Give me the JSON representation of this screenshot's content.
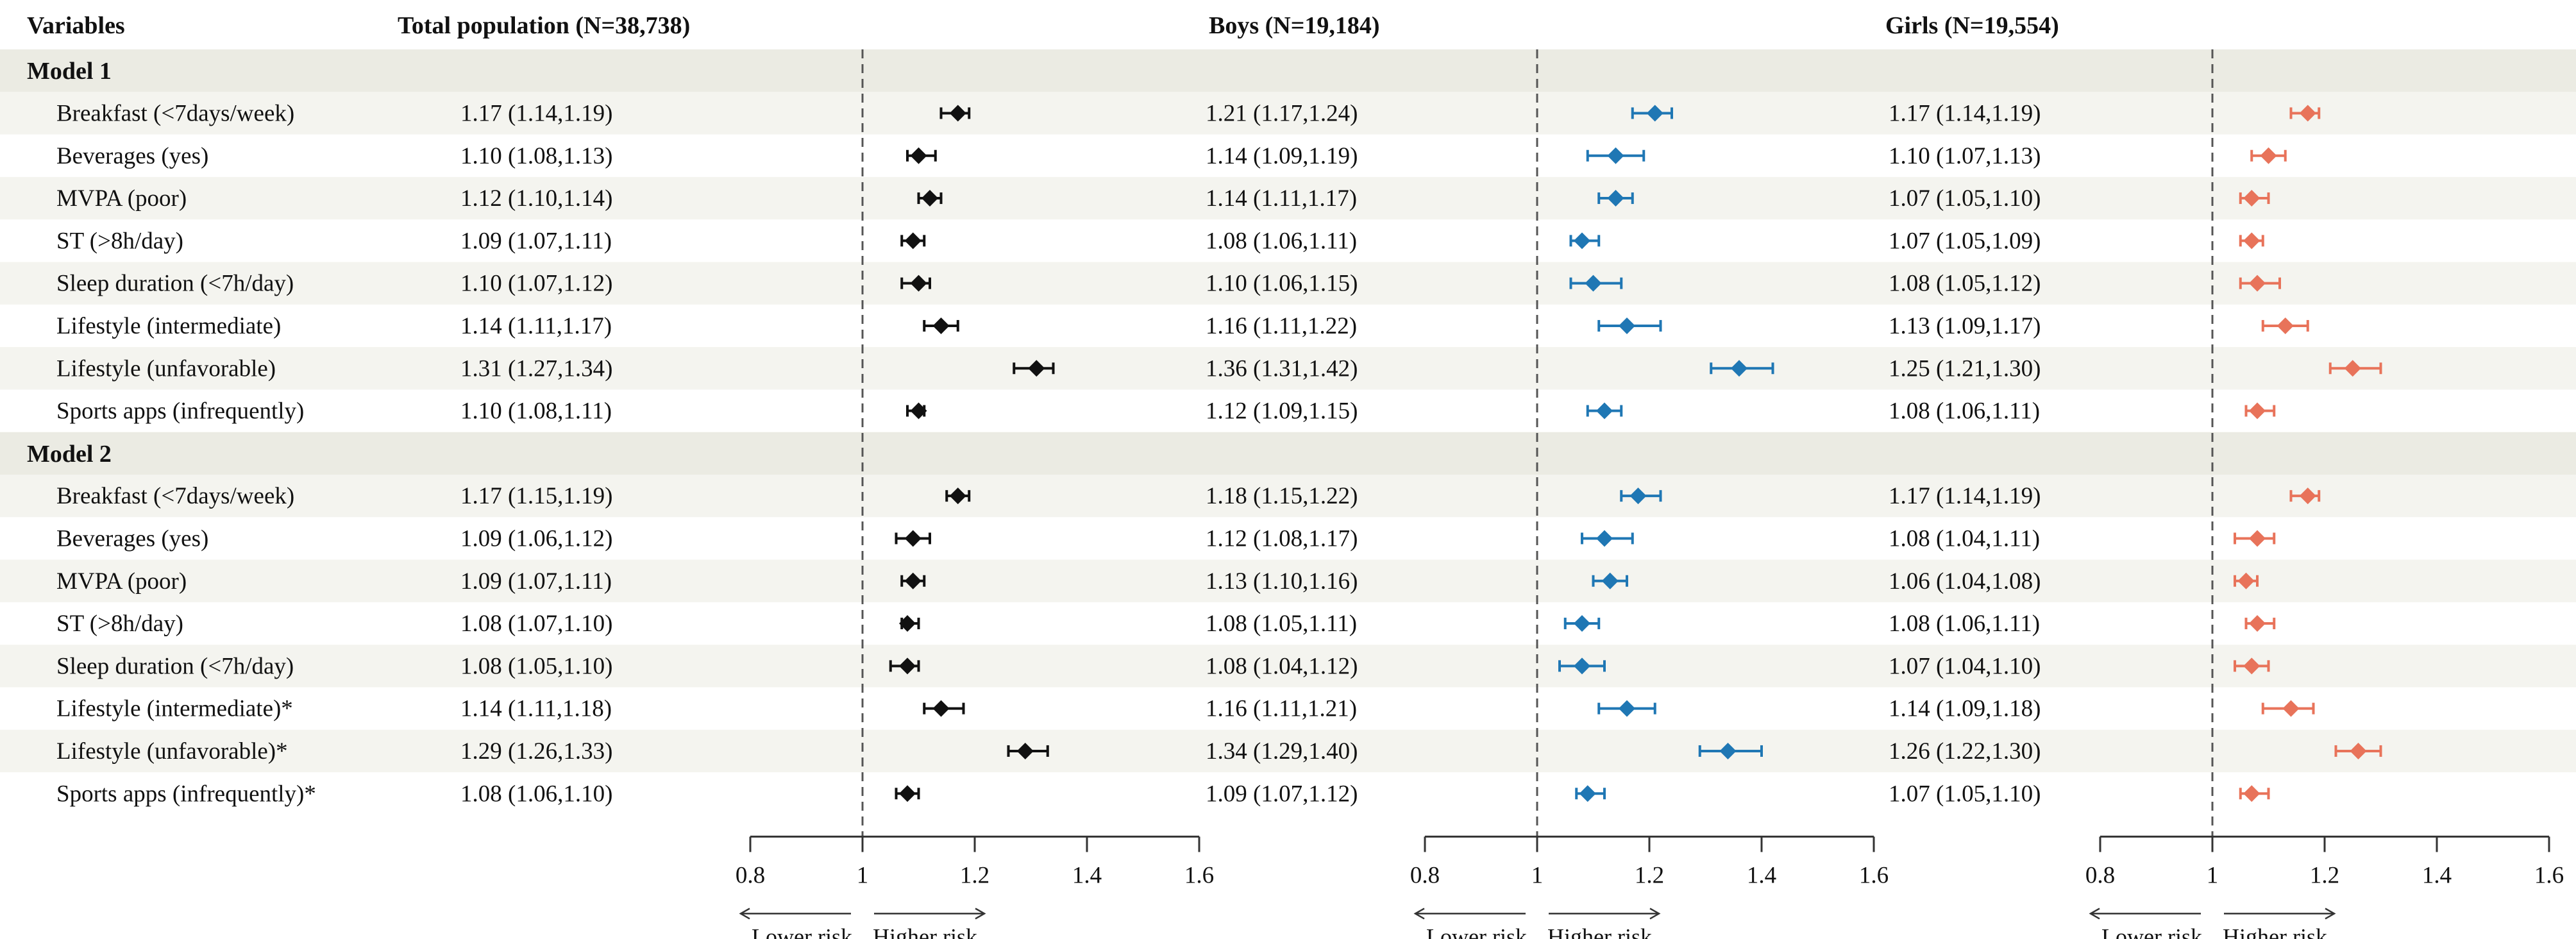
{
  "headers": {
    "variables": "Variables",
    "total": "Total population (N=38,738)",
    "boys": "Boys (N=19,184)",
    "girls": "Girls (N=19,554)"
  },
  "colors": {
    "total": "#111111",
    "boys": "#1f77b4",
    "girls": "#e8735a",
    "band": "#ebebe3",
    "stripe": "#f4f4ef"
  },
  "axis": {
    "ticks": [
      0.8,
      1,
      1.2,
      1.4,
      1.6
    ],
    "tick_labels": [
      "0.8",
      "1",
      "1.2",
      "1.4",
      "1.6"
    ],
    "xlim": [
      0.8,
      1.6
    ],
    "reference": 1,
    "lower_label": "Lower risk",
    "higher_label": "Higher risk"
  },
  "chart_data": {
    "type": "forest",
    "panels": [
      "Total population (N=38,738)",
      "Boys (N=19,184)",
      "Girls (N=19,554)"
    ],
    "models": [
      {
        "name": "Model 1",
        "rows": [
          {
            "variable": "Breakfast (<7days/week)",
            "total": [
              1.17,
              1.14,
              1.19
            ],
            "total_label": "1.17 (1.14,1.19)",
            "boys": [
              1.21,
              1.17,
              1.24
            ],
            "boys_label": "1.21 (1.17,1.24)",
            "girls": [
              1.17,
              1.14,
              1.19
            ],
            "girls_label": "1.17 (1.14,1.19)"
          },
          {
            "variable": "Beverages (yes)",
            "total": [
              1.1,
              1.08,
              1.13
            ],
            "total_label": "1.10 (1.08,1.13)",
            "boys": [
              1.14,
              1.09,
              1.19
            ],
            "boys_label": "1.14 (1.09,1.19)",
            "girls": [
              1.1,
              1.07,
              1.13
            ],
            "girls_label": "1.10 (1.07,1.13)"
          },
          {
            "variable": "MVPA (poor)",
            "total": [
              1.12,
              1.1,
              1.14
            ],
            "total_label": "1.12 (1.10,1.14)",
            "boys": [
              1.14,
              1.11,
              1.17
            ],
            "boys_label": "1.14 (1.11,1.17)",
            "girls": [
              1.07,
              1.05,
              1.1
            ],
            "girls_label": "1.07 (1.05,1.10)"
          },
          {
            "variable": "ST (>8h/day)",
            "total": [
              1.09,
              1.07,
              1.11
            ],
            "total_label": "1.09 (1.07,1.11)",
            "boys": [
              1.08,
              1.06,
              1.11
            ],
            "boys_label": "1.08 (1.06,1.11)",
            "girls": [
              1.07,
              1.05,
              1.09
            ],
            "girls_label": "1.07 (1.05,1.09)"
          },
          {
            "variable": "Sleep duration (<7h/day)",
            "total": [
              1.1,
              1.07,
              1.12
            ],
            "total_label": "1.10 (1.07,1.12)",
            "boys": [
              1.1,
              1.06,
              1.15
            ],
            "boys_label": "1.10 (1.06,1.15)",
            "girls": [
              1.08,
              1.05,
              1.12
            ],
            "girls_label": "1.08 (1.05,1.12)"
          },
          {
            "variable": "Lifestyle (intermediate)",
            "total": [
              1.14,
              1.11,
              1.17
            ],
            "total_label": "1.14 (1.11,1.17)",
            "boys": [
              1.16,
              1.11,
              1.22
            ],
            "boys_label": "1.16 (1.11,1.22)",
            "girls": [
              1.13,
              1.09,
              1.17
            ],
            "girls_label": "1.13 (1.09,1.17)"
          },
          {
            "variable": "Lifestyle (unfavorable)",
            "total": [
              1.31,
              1.27,
              1.34
            ],
            "total_label": "1.31 (1.27,1.34)",
            "boys": [
              1.36,
              1.31,
              1.42
            ],
            "boys_label": "1.36 (1.31,1.42)",
            "girls": [
              1.25,
              1.21,
              1.3
            ],
            "girls_label": "1.25 (1.21,1.30)"
          },
          {
            "variable": "Sports apps (infrequently)",
            "total": [
              1.1,
              1.08,
              1.11
            ],
            "total_label": "1.10 (1.08,1.11)",
            "boys": [
              1.12,
              1.09,
              1.15
            ],
            "boys_label": "1.12 (1.09,1.15)",
            "girls": [
              1.08,
              1.06,
              1.11
            ],
            "girls_label": "1.08 (1.06,1.11)"
          }
        ]
      },
      {
        "name": "Model 2",
        "rows": [
          {
            "variable": "Breakfast (<7days/week)",
            "total": [
              1.17,
              1.15,
              1.19
            ],
            "total_label": "1.17 (1.15,1.19)",
            "boys": [
              1.18,
              1.15,
              1.22
            ],
            "boys_label": "1.18 (1.15,1.22)",
            "girls": [
              1.17,
              1.14,
              1.19
            ],
            "girls_label": "1.17 (1.14,1.19)"
          },
          {
            "variable": "Beverages (yes)",
            "total": [
              1.09,
              1.06,
              1.12
            ],
            "total_label": "1.09 (1.06,1.12)",
            "boys": [
              1.12,
              1.08,
              1.17
            ],
            "boys_label": "1.12 (1.08,1.17)",
            "girls": [
              1.08,
              1.04,
              1.11
            ],
            "girls_label": "1.08 (1.04,1.11)"
          },
          {
            "variable": "MVPA (poor)",
            "total": [
              1.09,
              1.07,
              1.11
            ],
            "total_label": "1.09 (1.07,1.11)",
            "boys": [
              1.13,
              1.1,
              1.16
            ],
            "boys_label": "1.13 (1.10,1.16)",
            "girls": [
              1.06,
              1.04,
              1.08
            ],
            "girls_label": "1.06 (1.04,1.08)"
          },
          {
            "variable": "ST (>8h/day)",
            "total": [
              1.08,
              1.07,
              1.1
            ],
            "total_label": "1.08 (1.07,1.10)",
            "boys": [
              1.08,
              1.05,
              1.11
            ],
            "boys_label": "1.08 (1.05,1.11)",
            "girls": [
              1.08,
              1.06,
              1.11
            ],
            "girls_label": "1.08 (1.06,1.11)"
          },
          {
            "variable": "Sleep duration (<7h/day)",
            "total": [
              1.08,
              1.05,
              1.1
            ],
            "total_label": "1.08 (1.05,1.10)",
            "boys": [
              1.08,
              1.04,
              1.12
            ],
            "boys_label": "1.08 (1.04,1.12)",
            "girls": [
              1.07,
              1.04,
              1.1
            ],
            "girls_label": "1.07 (1.04,1.10)"
          },
          {
            "variable": "Lifestyle (intermediate)*",
            "total": [
              1.14,
              1.11,
              1.18
            ],
            "total_label": "1.14 (1.11,1.18)",
            "boys": [
              1.16,
              1.11,
              1.21
            ],
            "boys_label": "1.16 (1.11,1.21)",
            "girls": [
              1.14,
              1.09,
              1.18
            ],
            "girls_label": "1.14 (1.09,1.18)"
          },
          {
            "variable": "Lifestyle (unfavorable)*",
            "total": [
              1.29,
              1.26,
              1.33
            ],
            "total_label": "1.29 (1.26,1.33)",
            "boys": [
              1.34,
              1.29,
              1.4
            ],
            "boys_label": "1.34 (1.29,1.40)",
            "girls": [
              1.26,
              1.22,
              1.3
            ],
            "girls_label": "1.26 (1.22,1.30)"
          },
          {
            "variable": "Sports apps (infrequently)*",
            "total": [
              1.08,
              1.06,
              1.1
            ],
            "total_label": "1.08 (1.06,1.10)",
            "boys": [
              1.09,
              1.07,
              1.12
            ],
            "boys_label": "1.09 (1.07,1.12)",
            "girls": [
              1.07,
              1.05,
              1.1
            ],
            "girls_label": "1.07 (1.05,1.10)"
          }
        ]
      }
    ]
  }
}
